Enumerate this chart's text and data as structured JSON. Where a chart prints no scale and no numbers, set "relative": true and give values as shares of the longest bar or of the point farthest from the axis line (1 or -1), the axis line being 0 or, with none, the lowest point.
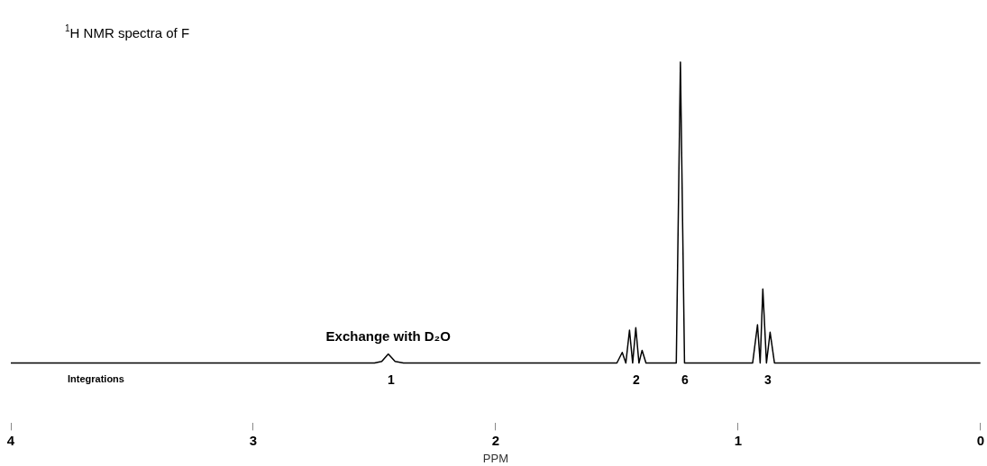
{
  "chart_data": {
    "type": "line",
    "title": "$^{1}$H NMR spectra of F",
    "xlabel": "PPM",
    "relative": true,
    "xlim": [
      4,
      0
    ],
    "xticks": [
      4,
      3,
      2,
      1,
      0
    ],
    "grid": false,
    "legend": false,
    "marker": "none",
    "line_style": "solid",
    "series": [
      {
        "color": "#000000",
        "x": [
          4,
          2.5,
          2.47,
          2.443,
          2.415,
          2.38,
          1.5,
          1.478,
          1.463,
          1.448,
          1.435,
          1.422,
          1.409,
          1.396,
          1.38,
          1.255,
          1.238,
          1.221,
          0.94,
          0.92,
          0.909,
          0.898,
          0.883,
          0.868,
          0.85,
          0
        ],
        "values": [
          0,
          0,
          0.005,
          0.03,
          0.005,
          0,
          0,
          0.035,
          0,
          0.109,
          0,
          0.117,
          0,
          0.042,
          0,
          0,
          1,
          0,
          0,
          0.127,
          0,
          0.246,
          0,
          0.102,
          0,
          0
        ]
      }
    ],
    "annotations": [
      {
        "text": "Exchange with D₂O",
        "x": 2.443,
        "y": 0.03
      },
      "Integrations",
      "1",
      "2",
      "6",
      "3"
    ]
  }
}
